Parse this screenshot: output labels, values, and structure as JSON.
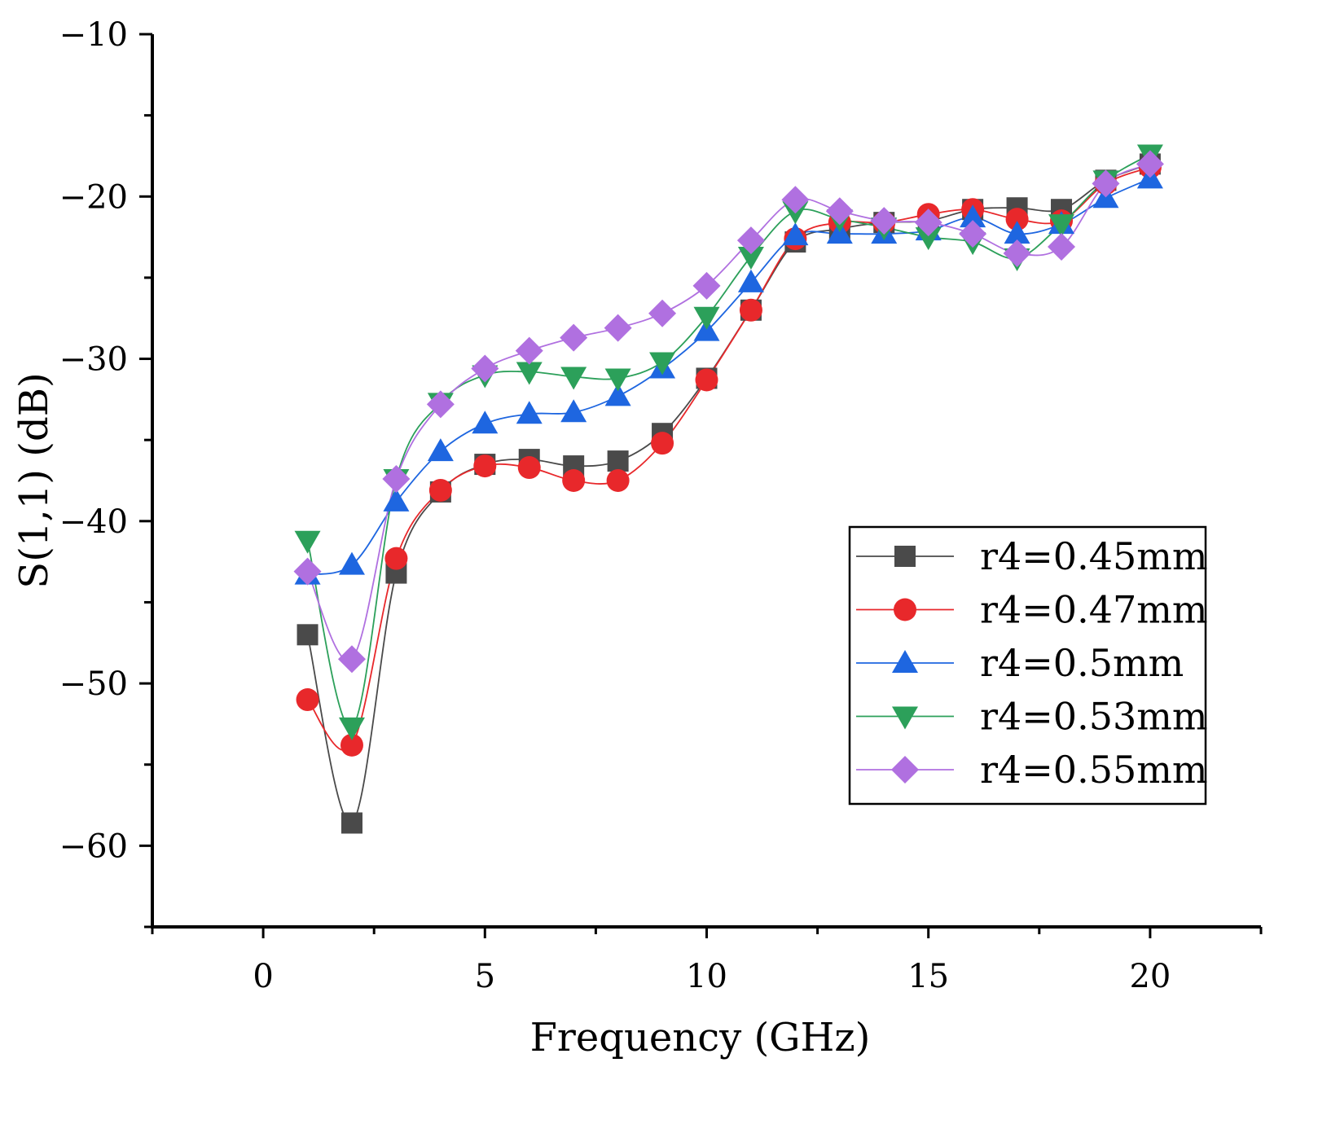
{
  "chart_data": {
    "type": "line",
    "title": "",
    "xlabel": "Frequency (GHz)",
    "ylabel": "S(1,1) (dB)",
    "xlim": [
      -2.5,
      22.5
    ],
    "ylim": [
      -65,
      -10
    ],
    "xticks": [
      0,
      5,
      10,
      15,
      20
    ],
    "xtick_labels": [
      "0",
      "5",
      "10",
      "15",
      "20"
    ],
    "yticks": [
      -10,
      -20,
      -30,
      -40,
      -50,
      -60
    ],
    "ytick_labels": [
      "−10",
      "−20",
      "−30",
      "−40",
      "−50",
      "−60"
    ],
    "legend_position": "lower-right",
    "x": [
      1,
      2,
      3,
      4,
      5,
      6,
      7,
      8,
      9,
      10,
      11,
      12,
      13,
      14,
      15,
      16,
      17,
      18,
      19,
      20
    ],
    "series": [
      {
        "name": "r4=0.45mm",
        "color": "#4a4a4a",
        "marker": "square",
        "values": [
          -47.0,
          -58.6,
          -43.2,
          -38.2,
          -36.5,
          -36.2,
          -36.6,
          -36.3,
          -34.6,
          -31.2,
          -27.0,
          -22.8,
          -22.0,
          -21.6,
          -21.5,
          -20.8,
          -20.7,
          -20.8,
          -19.0,
          -18.0
        ]
      },
      {
        "name": "r4=0.47mm",
        "color": "#e8282b",
        "marker": "circle",
        "values": [
          -51.0,
          -53.8,
          -42.3,
          -38.1,
          -36.6,
          -36.7,
          -37.5,
          -37.5,
          -35.2,
          -31.3,
          -27.0,
          -22.6,
          -21.6,
          -21.6,
          -21.1,
          -20.8,
          -21.4,
          -21.5,
          -19.2,
          -18.2
        ]
      },
      {
        "name": "r4=0.5mm",
        "color": "#1e66e0",
        "marker": "triangle-up",
        "values": [
          -43.3,
          -42.7,
          -38.8,
          -35.7,
          -34.0,
          -33.4,
          -33.3,
          -32.3,
          -30.6,
          -28.3,
          -25.3,
          -22.4,
          -22.3,
          -22.3,
          -22.1,
          -21.3,
          -22.3,
          -21.7,
          -20.1,
          -18.9
        ]
      },
      {
        "name": "r4=0.53mm",
        "color": "#2ca05a",
        "marker": "triangle-down",
        "values": [
          -41.2,
          -52.7,
          -37.4,
          -32.7,
          -31.0,
          -30.8,
          -31.1,
          -31.2,
          -30.2,
          -27.4,
          -23.7,
          -20.9,
          -21.4,
          -21.9,
          -22.5,
          -22.8,
          -23.8,
          -21.7,
          -19.0,
          -17.4
        ]
      },
      {
        "name": "r4=0.55mm",
        "color": "#b070e0",
        "marker": "diamond",
        "values": [
          -43.1,
          -48.5,
          -37.4,
          -32.8,
          -30.6,
          -29.5,
          -28.7,
          -28.1,
          -27.2,
          -25.5,
          -22.7,
          -20.2,
          -20.9,
          -21.5,
          -21.6,
          -22.3,
          -23.5,
          -23.1,
          -19.2,
          -18.0
        ]
      }
    ]
  }
}
